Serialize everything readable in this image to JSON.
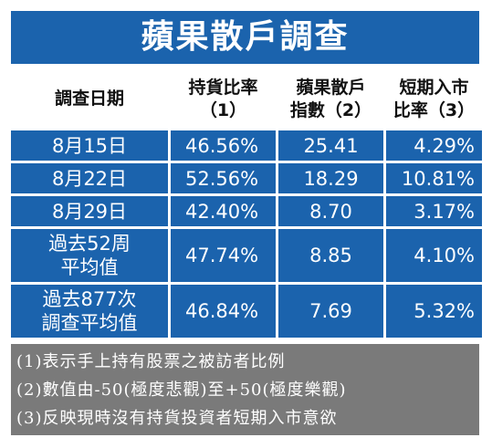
{
  "title": "蘋果散戶調查",
  "headers": {
    "date": "調查日期",
    "holding_l1": "持貨比率",
    "holding_l2": "（1）",
    "index_l1": "蘋果散戶",
    "index_l2": "指數（2）",
    "short_l1": "短期入市",
    "short_l2": "比率（3）"
  },
  "rows": [
    {
      "date_l1": "8月15日",
      "date_l2": "",
      "holding": "46.56%",
      "index": "25.41",
      "short": "4.29%"
    },
    {
      "date_l1": "8月22日",
      "date_l2": "",
      "holding": "52.56%",
      "index": "18.29",
      "short": "10.81%"
    },
    {
      "date_l1": "8月29日",
      "date_l2": "",
      "holding": "42.40%",
      "index": "8.70",
      "short": "3.17%"
    },
    {
      "date_l1": "過去52周",
      "date_l2": "平均值",
      "holding": "47.74%",
      "index": "8.85",
      "short": "4.10%"
    },
    {
      "date_l1": "過去877次",
      "date_l2": "調查平均值",
      "holding": "46.84%",
      "index": "7.69",
      "short": "5.32%"
    }
  ],
  "notes": [
    "(1)表示手上持有股票之被訪者比例",
    "(2)數值由-50(極度悲觀)至+50(極度樂觀)",
    "(3)反映現時沒有持貨投資者短期入市意欲"
  ],
  "colors": {
    "header_bg": "#1b63ad",
    "notes_bg": "#7a7a7a"
  }
}
